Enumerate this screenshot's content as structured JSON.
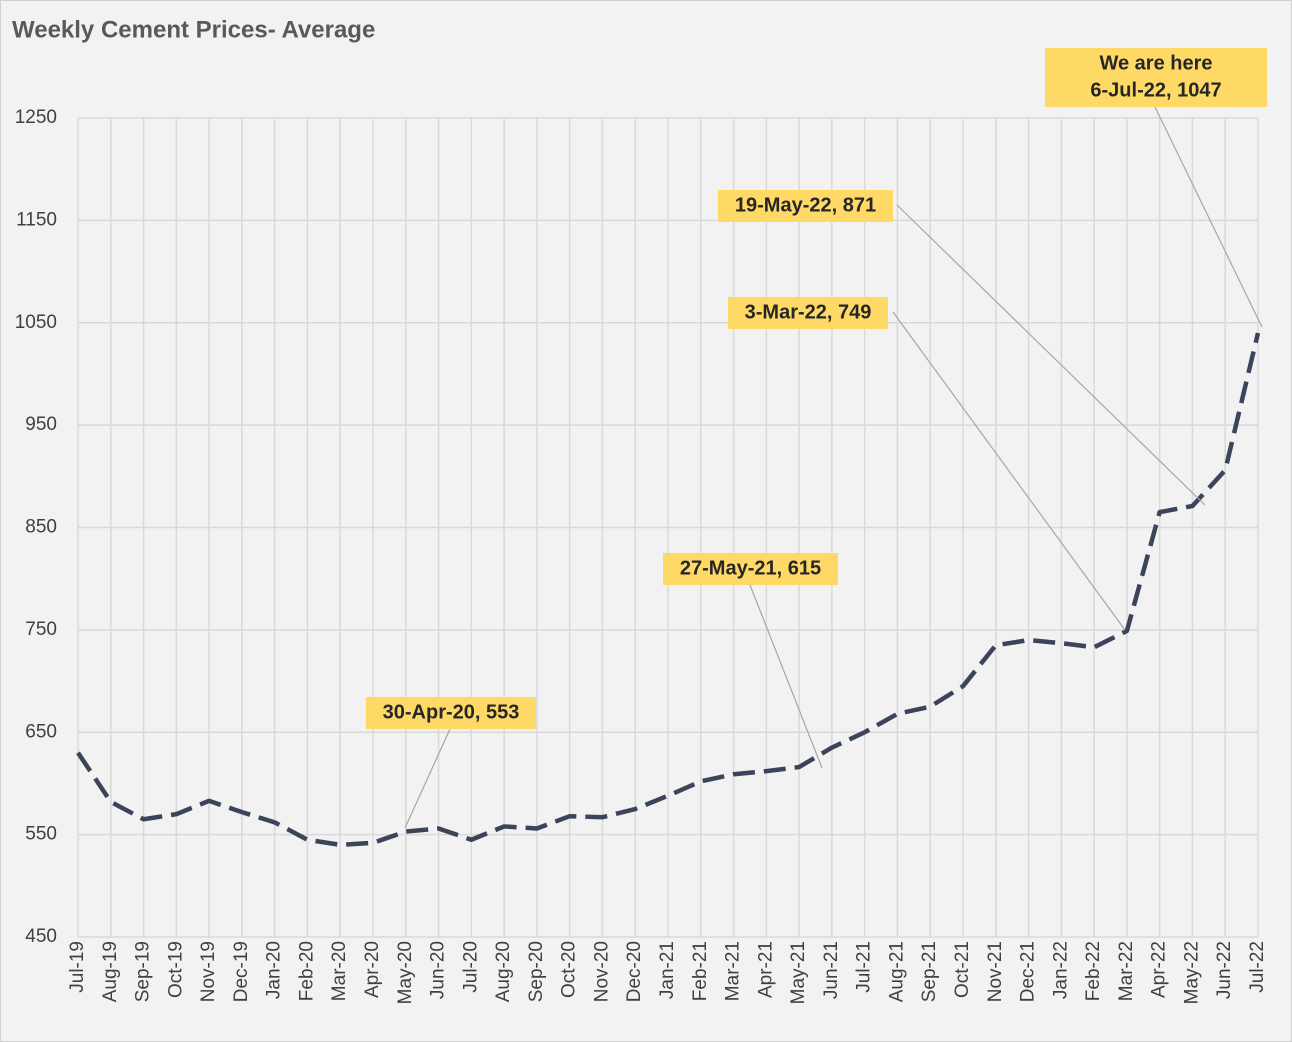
{
  "chart_data": {
    "type": "line",
    "title": "Weekly Cement Prices- Average",
    "categories": [
      "Jul-19",
      "Aug-19",
      "Sep-19",
      "Oct-19",
      "Nov-19",
      "Dec-19",
      "Jan-20",
      "Feb-20",
      "Mar-20",
      "Apr-20",
      "May-20",
      "Jun-20",
      "Jul-20",
      "Aug-20",
      "Sep-20",
      "Oct-20",
      "Nov-20",
      "Dec-20",
      "Jan-21",
      "Feb-21",
      "Mar-21",
      "Apr-21",
      "May-21",
      "Jun-21",
      "Jul-21",
      "Aug-21",
      "Sep-21",
      "Oct-21",
      "Nov-21",
      "Dec-21",
      "Jan-22",
      "Feb-22",
      "Mar-22",
      "Apr-22",
      "May-22",
      "Jun-22",
      "Jul-22"
    ],
    "values": [
      630,
      582,
      565,
      570,
      583,
      572,
      562,
      545,
      540,
      542,
      553,
      556,
      545,
      558,
      556,
      568,
      567,
      575,
      588,
      602,
      609,
      612,
      616,
      635,
      650,
      668,
      675,
      695,
      735,
      740,
      737,
      733,
      749,
      865,
      871,
      906,
      1040
    ],
    "color": "#3b4459",
    "ylim": [
      450,
      1250
    ],
    "yticks": [
      450,
      550,
      650,
      750,
      850,
      950,
      1050,
      1150,
      1250
    ],
    "grid": true,
    "annotations": [
      [
        "30-Apr-20, 553"
      ],
      [
        "27-May-21, 615"
      ],
      [
        "3-Mar-22, 749"
      ],
      [
        "19-May-22, 871"
      ],
      [
        "We are here",
        "6-Jul-22, 1047"
      ]
    ]
  }
}
